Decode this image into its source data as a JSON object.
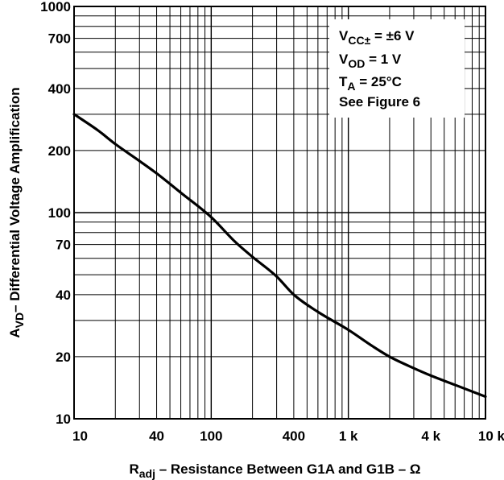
{
  "chart_data": {
    "type": "line",
    "title": "",
    "xscale": "log",
    "yscale": "log",
    "xlim": [
      10,
      10000
    ],
    "ylim": [
      10,
      1000
    ],
    "grid": true,
    "xticks": [
      {
        "value": 10,
        "label": "10"
      },
      {
        "value": 40,
        "label": "40"
      },
      {
        "value": 100,
        "label": "100"
      },
      {
        "value": 400,
        "label": "400"
      },
      {
        "value": 1000,
        "label": "1 k"
      },
      {
        "value": 4000,
        "label": "4 k"
      },
      {
        "value": 10000,
        "label": "10 k"
      }
    ],
    "yticks": [
      {
        "value": 10,
        "label": "10"
      },
      {
        "value": 20,
        "label": "20"
      },
      {
        "value": 40,
        "label": "40"
      },
      {
        "value": 70,
        "label": "70"
      },
      {
        "value": 100,
        "label": "100"
      },
      {
        "value": 200,
        "label": "200"
      },
      {
        "value": 400,
        "label": "400"
      },
      {
        "value": 700,
        "label": "700"
      },
      {
        "value": 1000,
        "label": "1000"
      }
    ],
    "xlabel": {
      "main": "R",
      "sub": "adj",
      "rest": " – Resistance Between G1A and G1B – Ω"
    },
    "ylabel": {
      "main": "A",
      "sub": "VD",
      "rest": "– Differential Voltage Amplification"
    },
    "conditions": [
      {
        "main": "V",
        "sub": "CC±",
        "rest": " = ±6 V"
      },
      {
        "main": "V",
        "sub": "OD",
        "rest": " = 1 V"
      },
      {
        "main": "T",
        "sub": "A",
        "rest": " = 25°C"
      },
      {
        "main": "See Figure 6",
        "sub": "",
        "rest": ""
      }
    ],
    "series": [
      {
        "x": [
          10,
          15,
          20,
          30,
          40,
          60,
          100,
          150,
          200,
          300,
          400,
          600,
          1000,
          1500,
          2000,
          3000,
          4000,
          6000,
          10000
        ],
        "y": [
          300,
          250,
          215,
          178,
          155,
          125,
          95,
          72,
          61,
          49,
          40,
          33,
          27,
          22.5,
          20,
          17.6,
          16.2,
          14.6,
          12.8
        ]
      }
    ]
  }
}
